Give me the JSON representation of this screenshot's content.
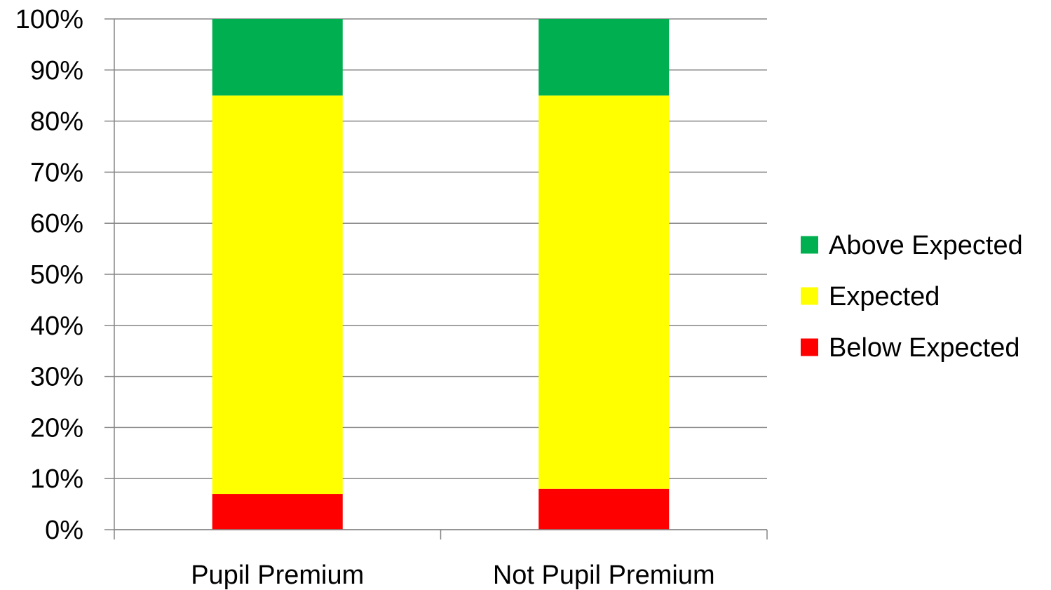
{
  "chart_data": {
    "type": "bar",
    "stacked": true,
    "normalized": true,
    "title": "",
    "xlabel": "",
    "ylabel": "",
    "categories": [
      "Pupil Premium",
      "Not Pupil Premium"
    ],
    "series": [
      {
        "name": "Below Expected",
        "values": [
          7,
          8
        ],
        "color": "#ff0000"
      },
      {
        "name": "Expected",
        "values": [
          78,
          77
        ],
        "color": "#ffff00"
      },
      {
        "name": "Above Expected",
        "values": [
          15,
          15
        ],
        "color": "#00b050"
      }
    ],
    "ylim": [
      0,
      100
    ],
    "yticks": [
      "0%",
      "10%",
      "20%",
      "30%",
      "40%",
      "50%",
      "60%",
      "70%",
      "80%",
      "90%",
      "100%"
    ],
    "grid": true,
    "legend_position": "right",
    "legend_order": [
      "Above Expected",
      "Expected",
      "Below Expected"
    ],
    "gridline_color": "#868686",
    "axis_color": "#868686"
  }
}
